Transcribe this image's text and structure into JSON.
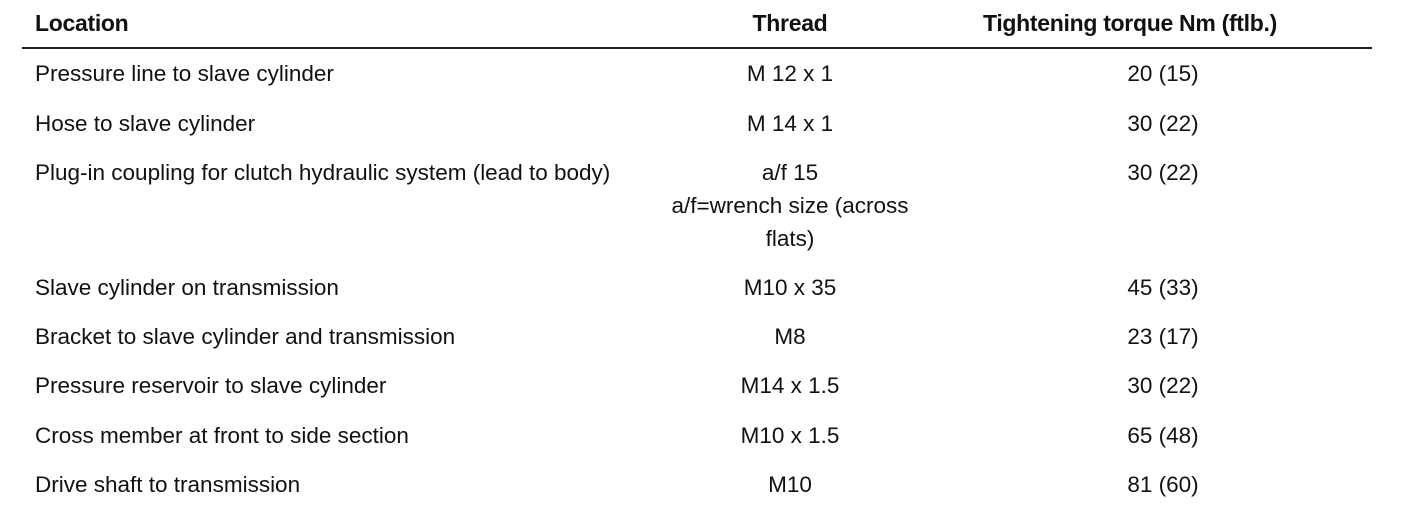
{
  "header": {
    "location": "Location",
    "thread": "Thread",
    "torque": "Tightening torque Nm (ftlb.)"
  },
  "rows": [
    {
      "location": "Pressure line to slave cylinder",
      "thread": [
        "M 12 x 1"
      ],
      "torque": "20 (15)"
    },
    {
      "location": "Hose to slave cylinder",
      "thread": [
        "M 14 x 1"
      ],
      "torque": "30 (22)"
    },
    {
      "location": "Plug-in coupling for clutch hydraulic system (lead to body)",
      "thread": [
        "a/f 15",
        "a/f=wrench size (across",
        "flats)"
      ],
      "torque": "30 (22)"
    },
    {
      "location": "Slave cylinder on transmission",
      "thread": [
        "M10 x 35"
      ],
      "torque": "45 (33)"
    },
    {
      "location": "Bracket to slave cylinder and transmission",
      "thread": [
        "M8"
      ],
      "torque": "23 (17)"
    },
    {
      "location": "Pressure reservoir to slave cylinder",
      "thread": [
        "M14 x 1.5"
      ],
      "torque": "30 (22)"
    },
    {
      "location": "Cross member at front to side section",
      "thread": [
        "M10 x 1.5"
      ],
      "torque": "65 (48)"
    },
    {
      "location": "Drive shaft to transmission",
      "thread": [
        "M10"
      ],
      "torque": "81 (60)"
    }
  ]
}
